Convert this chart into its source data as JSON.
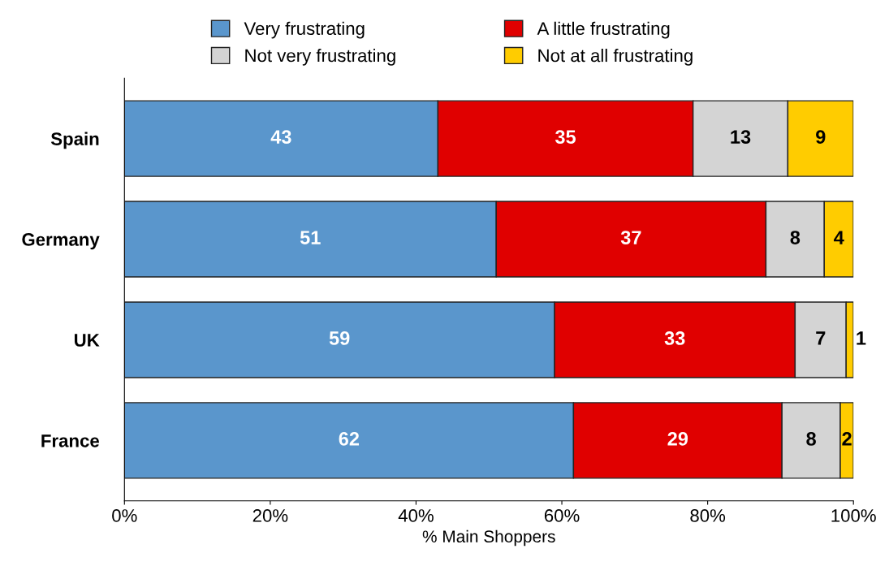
{
  "chart_data": {
    "type": "bar",
    "orientation": "horizontal",
    "stacked": true,
    "categories": [
      "Spain",
      "Germany",
      "UK",
      "France"
    ],
    "series": [
      {
        "name": "Very frustrating",
        "color": "#5a96cc",
        "values": [
          43,
          51,
          59,
          61.6
        ],
        "value_labels": [
          "43",
          "51",
          "59",
          "62"
        ]
      },
      {
        "name": "A little frustrating",
        "color": "#e00000",
        "values": [
          35,
          37,
          33,
          28.6
        ],
        "value_labels": [
          "35",
          "37",
          "33",
          "29"
        ]
      },
      {
        "name": "Not very frustrating",
        "color": "#d4d4d4",
        "values": [
          13,
          8,
          7,
          8
        ],
        "value_labels": [
          "13",
          "8",
          "7",
          "8"
        ]
      },
      {
        "name": "Not at all frustrating",
        "color": "#ffcc00",
        "values": [
          9,
          4,
          1,
          1.8
        ],
        "value_labels": [
          "9",
          "4",
          "1",
          "2"
        ]
      }
    ],
    "xlabel": "% Main Shoppers",
    "xlim": [
      0,
      100
    ],
    "xticks": [
      {
        "value": 0,
        "label": "0%"
      },
      {
        "value": 20,
        "label": "20%"
      },
      {
        "value": 40,
        "label": "40%"
      },
      {
        "value": 60,
        "label": "60%"
      },
      {
        "value": 80,
        "label": "80%"
      },
      {
        "value": 100,
        "label": "100%"
      }
    ],
    "legend": "top",
    "grid": false
  }
}
